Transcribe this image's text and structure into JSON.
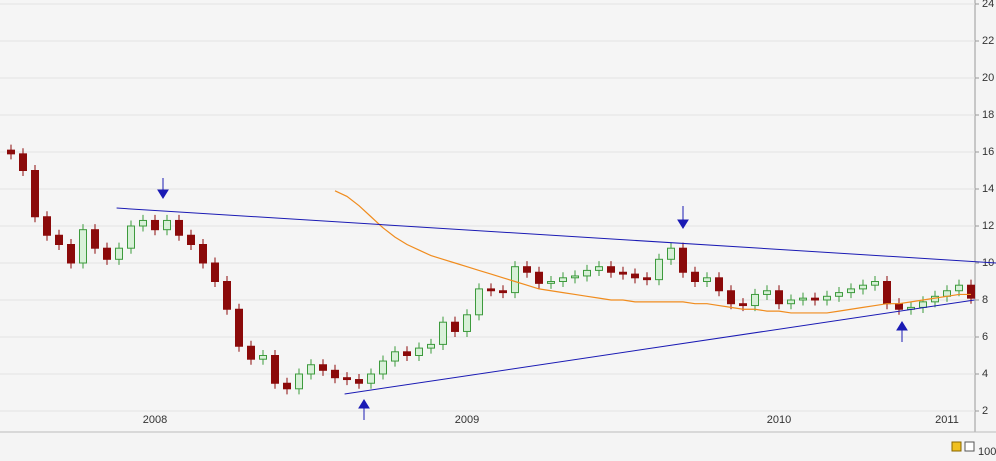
{
  "chart_data": {
    "type": "candlestick",
    "categories": [
      null,
      null,
      null,
      null,
      null,
      null,
      null,
      null,
      null,
      null,
      null,
      null,
      "2008",
      null,
      null,
      null,
      null,
      null,
      null,
      null,
      null,
      null,
      null,
      null,
      null,
      null,
      null,
      null,
      null,
      null,
      null,
      null,
      null,
      null,
      null,
      null,
      null,
      null,
      "2009",
      null,
      null,
      null,
      null,
      null,
      null,
      null,
      null,
      null,
      null,
      null,
      null,
      null,
      null,
      null,
      null,
      null,
      null,
      null,
      null,
      null,
      null,
      null,
      null,
      null,
      "2010",
      null,
      null,
      null,
      null,
      null,
      null,
      null,
      null,
      null,
      null,
      null,
      null,
      null,
      "2011",
      null,
      null
    ],
    "open": [
      16.1,
      15.9,
      15.0,
      12.5,
      11.5,
      11.0,
      10.0,
      11.8,
      10.8,
      10.2,
      10.8,
      12.0,
      12.3,
      11.8,
      12.3,
      11.5,
      11.0,
      10.0,
      9.0,
      7.5,
      5.5,
      4.8,
      5.0,
      3.5,
      3.2,
      4.0,
      4.5,
      4.2,
      3.8,
      3.7,
      3.5,
      4.0,
      4.7,
      5.2,
      5.0,
      5.4,
      5.6,
      6.8,
      6.3,
      7.2,
      8.6,
      8.5,
      8.4,
      9.8,
      9.5,
      8.9,
      9.0,
      9.2,
      9.3,
      9.6,
      9.8,
      9.5,
      9.4,
      9.2,
      9.1,
      10.2,
      10.8,
      9.5,
      9.0,
      9.2,
      8.5,
      7.8,
      7.7,
      8.3,
      8.5,
      7.8,
      8.0,
      8.1,
      8.0,
      8.2,
      8.4,
      8.6,
      8.8,
      9.0,
      7.8,
      7.5,
      7.6,
      7.9,
      8.2,
      8.5,
      8.8
    ],
    "high": [
      16.4,
      16.2,
      15.3,
      12.8,
      11.8,
      11.3,
      12.1,
      12.1,
      11.1,
      11.1,
      12.3,
      12.6,
      12.6,
      12.6,
      12.6,
      11.8,
      11.3,
      10.3,
      9.3,
      7.8,
      5.8,
      5.3,
      5.3,
      3.8,
      4.3,
      4.8,
      4.8,
      4.5,
      4.1,
      4.0,
      4.3,
      5.0,
      5.5,
      5.5,
      5.7,
      5.9,
      7.1,
      7.1,
      7.5,
      8.9,
      8.9,
      8.8,
      10.1,
      10.1,
      9.8,
      9.3,
      9.5,
      9.6,
      9.9,
      10.1,
      10.1,
      9.8,
      9.7,
      9.5,
      10.5,
      11.1,
      11.1,
      9.8,
      9.5,
      9.5,
      8.8,
      8.1,
      8.6,
      8.8,
      8.8,
      8.3,
      8.4,
      8.4,
      8.5,
      8.7,
      8.9,
      9.1,
      9.3,
      9.3,
      8.1,
      7.9,
      8.2,
      8.5,
      8.8,
      9.1,
      9.1
    ],
    "low": [
      15.6,
      14.7,
      12.2,
      11.2,
      10.7,
      9.7,
      9.7,
      10.5,
      9.9,
      9.9,
      10.5,
      11.7,
      11.5,
      11.5,
      11.2,
      10.7,
      9.7,
      8.7,
      7.2,
      5.2,
      4.5,
      4.5,
      3.2,
      2.9,
      2.9,
      3.7,
      3.9,
      3.5,
      3.4,
      3.2,
      3.2,
      3.7,
      4.4,
      4.7,
      4.7,
      5.1,
      5.3,
      6.0,
      6.0,
      6.9,
      8.2,
      8.1,
      8.1,
      9.2,
      8.6,
      8.6,
      8.7,
      8.9,
      9.0,
      9.3,
      9.2,
      9.1,
      8.9,
      8.8,
      8.8,
      9.9,
      9.2,
      8.7,
      8.7,
      8.2,
      7.5,
      7.4,
      7.4,
      8.0,
      7.5,
      7.5,
      7.7,
      7.7,
      7.7,
      7.9,
      8.1,
      8.3,
      8.5,
      7.5,
      7.2,
      7.2,
      7.3,
      7.6,
      7.9,
      8.2,
      7.8
    ],
    "close": [
      15.9,
      15.0,
      12.5,
      11.5,
      11.0,
      10.0,
      11.8,
      10.8,
      10.2,
      10.8,
      12.0,
      12.3,
      11.8,
      12.3,
      11.5,
      11.0,
      10.0,
      9.0,
      7.5,
      5.5,
      4.8,
      5.0,
      3.5,
      3.2,
      4.0,
      4.5,
      4.2,
      3.8,
      3.7,
      3.5,
      4.0,
      4.7,
      5.2,
      5.0,
      5.4,
      5.6,
      6.8,
      6.3,
      7.2,
      8.6,
      8.5,
      8.4,
      9.8,
      9.5,
      8.9,
      9.0,
      9.2,
      9.3,
      9.6,
      9.8,
      9.5,
      9.4,
      9.2,
      9.1,
      10.2,
      10.8,
      9.5,
      9.0,
      9.2,
      8.5,
      7.8,
      7.7,
      8.3,
      8.5,
      7.8,
      8.0,
      8.1,
      8.0,
      8.2,
      8.4,
      8.6,
      8.8,
      9.0,
      7.8,
      7.5,
      7.6,
      7.9,
      8.2,
      8.5,
      8.8,
      8.1
    ],
    "up_color": "#3c9a3c",
    "down_color": "#8b0a0a",
    "moving_average": {
      "color": "#f08c1e",
      "values": [
        null,
        null,
        null,
        null,
        null,
        null,
        null,
        null,
        null,
        null,
        null,
        null,
        null,
        null,
        null,
        null,
        null,
        null,
        null,
        null,
        null,
        null,
        null,
        null,
        null,
        null,
        null,
        13.9,
        13.6,
        13.1,
        12.5,
        11.9,
        11.4,
        11.0,
        10.7,
        10.4,
        10.2,
        10.0,
        9.8,
        9.6,
        9.4,
        9.2,
        9.0,
        8.8,
        8.6,
        8.5,
        8.4,
        8.3,
        8.2,
        8.1,
        8.0,
        8.0,
        7.9,
        7.9,
        7.9,
        7.9,
        7.9,
        7.8,
        7.8,
        7.7,
        7.6,
        7.5,
        7.5,
        7.4,
        7.4,
        7.3,
        7.3,
        7.3,
        7.3,
        7.4,
        7.5,
        7.6,
        7.7,
        7.8,
        7.8,
        7.9,
        8.0,
        8.1,
        8.2,
        8.3,
        8.3
      ]
    },
    "trendlines": [
      {
        "color": "#1a1ab4",
        "x": [
          8.8,
          82.1
        ],
        "values": [
          12.97,
          10.0
        ]
      },
      {
        "color": "#1a1ab4",
        "x": [
          27.8,
          80.3
        ],
        "values": [
          2.92,
          8.0
        ]
      }
    ],
    "ylim": [
      2,
      24
    ],
    "yticks": [
      2,
      4,
      6,
      8,
      10,
      12,
      14,
      16,
      18,
      20,
      22,
      24
    ],
    "grid": true,
    "lower_panel_tick": "100"
  }
}
